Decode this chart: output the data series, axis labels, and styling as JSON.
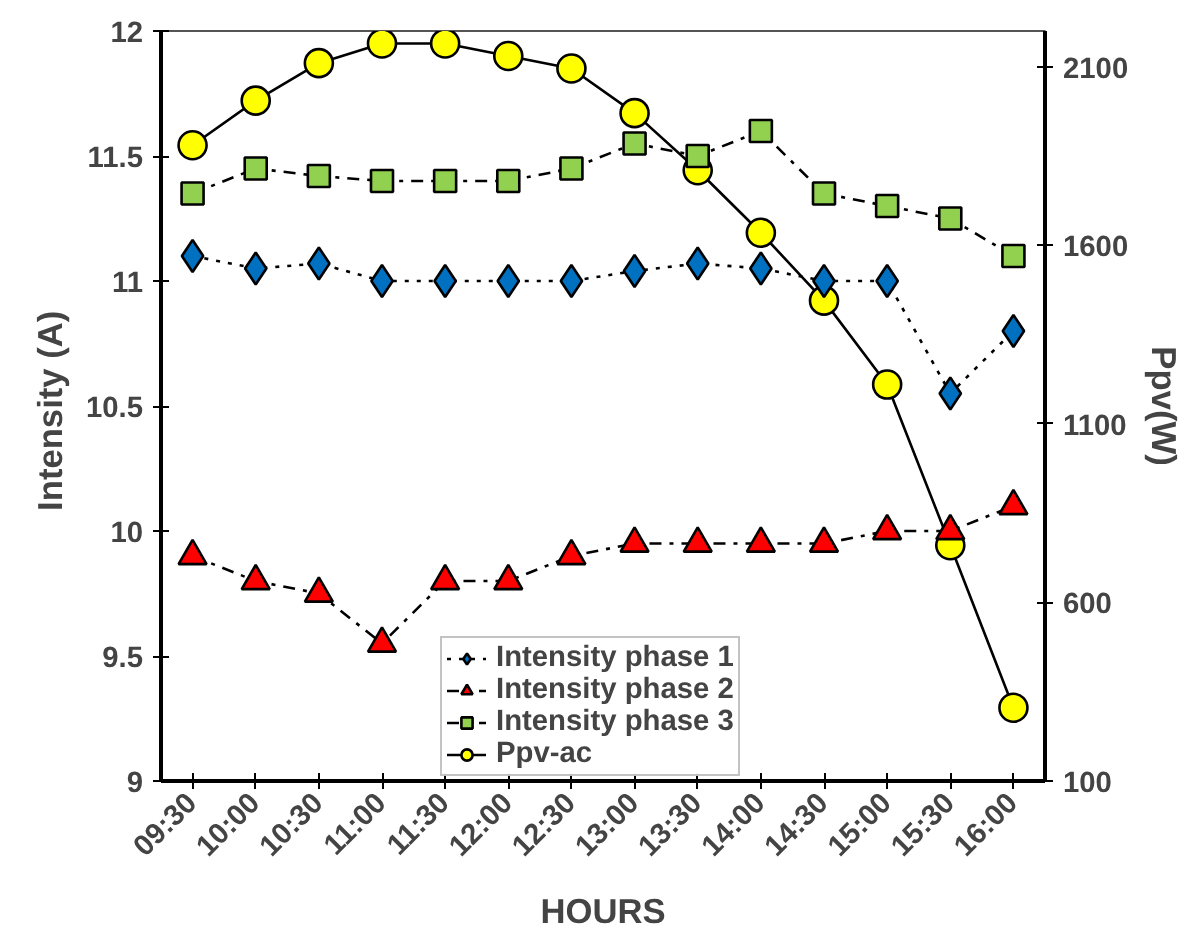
{
  "chart_data": {
    "type": "line",
    "xlabel": "HOURS",
    "ylabel": "Intensity  (A)",
    "y2label": "Ppv(W)",
    "categories": [
      "09:30",
      "10:00",
      "10:30",
      "11:00",
      "11:30",
      "12:00",
      "12:30",
      "13:00",
      "13:30",
      "14:00",
      "14:30",
      "15:00",
      "15:30",
      "16:00"
    ],
    "series": [
      {
        "name": "Intensity phase 1",
        "color": "#0070c0",
        "marker": "diamond",
        "line_style": "dotted",
        "values": [
          11.1,
          11.05,
          11.07,
          11.0,
          11.0,
          11.0,
          11.0,
          11.04,
          11.07,
          11.05,
          11.0,
          11.0,
          10.55,
          10.8
        ]
      },
      {
        "name": "Intensity phase 2",
        "color": "#ff0000",
        "marker": "triangle",
        "line_style": "dashed",
        "values": [
          9.9,
          9.8,
          9.75,
          9.55,
          9.8,
          9.8,
          9.9,
          9.95,
          9.95,
          9.95,
          9.95,
          10.0,
          10.0,
          10.1
        ]
      },
      {
        "name": "Intensity phase 3",
        "color": "#92d050",
        "marker": "square",
        "line_style": "dashed",
        "values": [
          11.35,
          11.45,
          11.42,
          11.4,
          11.4,
          11.4,
          11.45,
          11.55,
          11.5,
          11.6,
          11.35,
          11.3,
          11.25,
          11.1
        ]
      },
      {
        "name": "Ppv-ac",
        "color": "#ffff00",
        "marker": "circle",
        "line_style": "solid",
        "axis": "y2",
        "values": [
          1880,
          2005,
          2110,
          2165,
          2165,
          2130,
          2095,
          1970,
          1810,
          1635,
          1445,
          1210,
          760,
          305
        ]
      }
    ],
    "ylim": [
      9,
      12
    ],
    "yticks": [
      9,
      9.5,
      10,
      10.5,
      11,
      11.5,
      12
    ],
    "y2lim": [
      100,
      2200
    ],
    "y2ticks": [
      100,
      600,
      1100,
      1600,
      2100
    ],
    "grid": false,
    "legend": "bottom"
  }
}
